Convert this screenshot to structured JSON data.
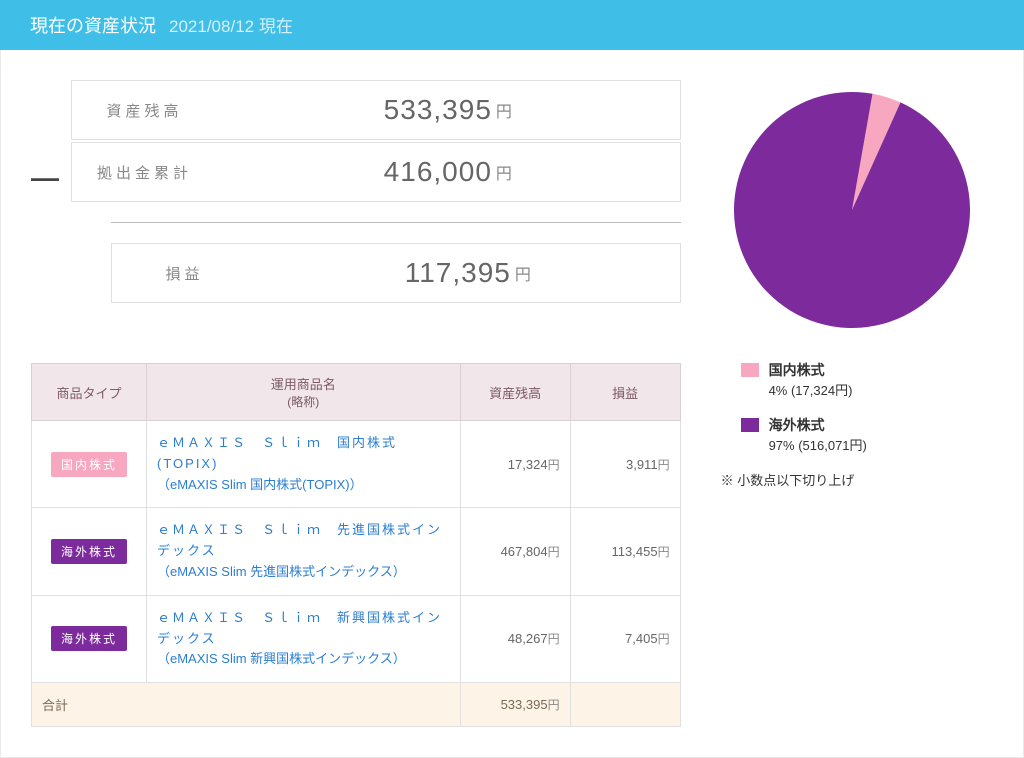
{
  "header": {
    "title": "現在の資産状況",
    "date": "2021/08/12 現在"
  },
  "summary": {
    "balance_label": "資産残高",
    "balance_value": "533,395",
    "contrib_label": "拠出金累計",
    "contrib_value": "416,000",
    "pl_label": "損益",
    "pl_value": "117,395",
    "yen": "円",
    "minus": "—"
  },
  "table": {
    "headers": {
      "type": "商品タイプ",
      "name": "運用商品名",
      "name_sub": "(略称)",
      "balance": "資産残高",
      "pl": "損益"
    },
    "rows": [
      {
        "badge": "国内株式",
        "badge_bg": "#f7a7bf",
        "name_main": "ｅＭＡＸＩＳ　Ｓｌｉｍ　国内株式(TOPIX)",
        "name_paren": "（eMAXIS Slim 国内株式(TOPIX)）",
        "balance": "17,324",
        "pl": "3,911"
      },
      {
        "badge": "海外株式",
        "badge_bg": "#7c2a9c",
        "name_main": "ｅＭＡＸＩＳ　Ｓｌｉｍ　先進国株式インデックス",
        "name_paren": "（eMAXIS Slim 先進国株式インデックス）",
        "balance": "467,804",
        "pl": "113,455"
      },
      {
        "badge": "海外株式",
        "badge_bg": "#7c2a9c",
        "name_main": "ｅＭＡＸＩＳ　Ｓｌｉｍ　新興国株式インデックス",
        "name_paren": "（eMAXIS Slim 新興国株式インデックス）",
        "balance": "48,267",
        "pl": "7,405"
      }
    ],
    "total_label": "合計",
    "total_balance": "533,395"
  },
  "pie": {
    "type": "pie",
    "size": 240,
    "background": "#ffffff",
    "slices": [
      {
        "label": "国内株式",
        "percent": 4,
        "amount": "17,324",
        "color": "#f7a7bf"
      },
      {
        "label": "海外株式",
        "percent": 97,
        "amount": "516,071",
        "color": "#7c2a9c"
      }
    ],
    "start_angle": -80
  },
  "legend": {
    "note": "※ 小数点以下切り上げ",
    "yen": "円"
  }
}
